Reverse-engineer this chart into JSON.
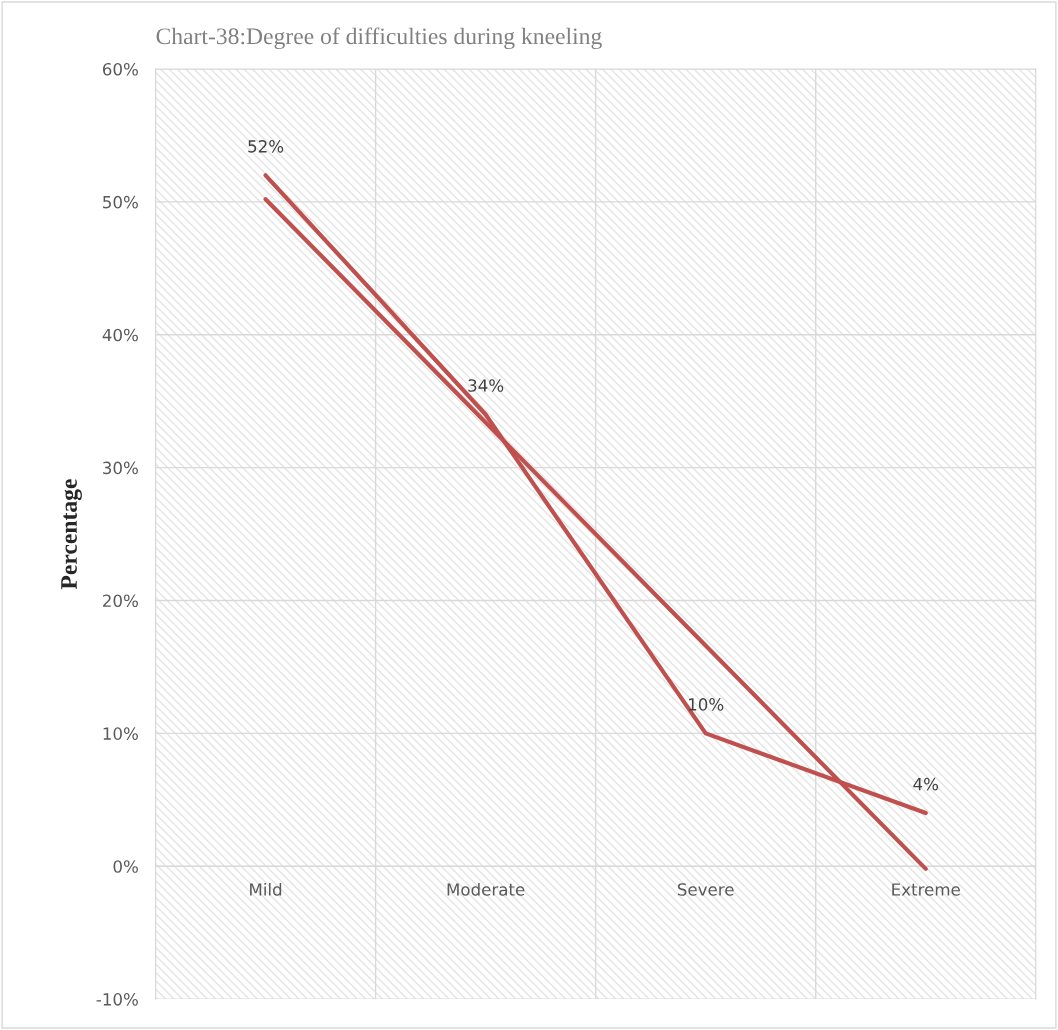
{
  "chart_data": {
    "type": "line",
    "title": "Chart-38:Degree of difficulties during kneeling",
    "ylabel": "Percentage",
    "categories": [
      "Mild",
      "Moderate",
      "Severe",
      "Extreme"
    ],
    "series": [
      {
        "color": "#c0504d",
        "values": [
          52,
          34,
          10,
          4
        ],
        "value_labels": [
          "52%",
          "34%",
          "10%",
          "4%"
        ]
      },
      {
        "type": "line",
        "color": "#c0504d",
        "x": [
          "Mild",
          "Extreme"
        ],
        "values": [
          50.2,
          -0.2
        ]
      }
    ],
    "ylim": [
      -10,
      60
    ],
    "yticks": [
      {
        "value": -10,
        "label": "-10%"
      },
      {
        "value": 0,
        "label": "0%"
      },
      {
        "value": 10,
        "label": "10%"
      },
      {
        "value": 20,
        "label": "20%"
      },
      {
        "value": 30,
        "label": "30%"
      },
      {
        "value": 40,
        "label": "40%"
      },
      {
        "value": 50,
        "label": "50%"
      },
      {
        "value": 60,
        "label": "60%"
      }
    ],
    "grid": true,
    "marker": "none",
    "line_style": "solid"
  }
}
